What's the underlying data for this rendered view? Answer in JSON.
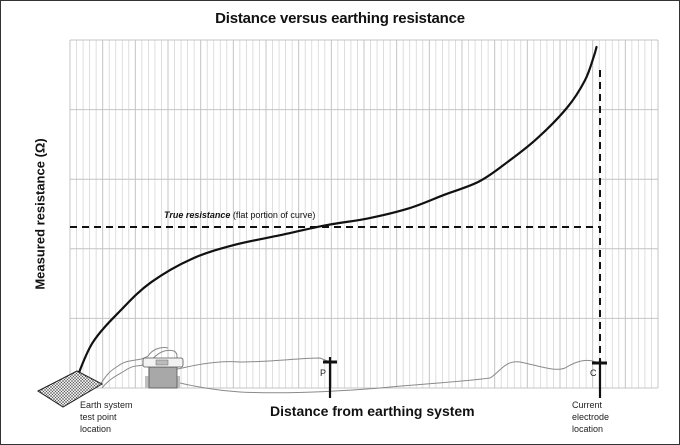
{
  "title": "Distance versus earthing resistance",
  "y_axis_label": "Measured resistance (Ω)",
  "x_axis_label": "Distance from earthing system",
  "annotation": {
    "bold_italic": "True resistance",
    "rest": " (flat portion of curve)"
  },
  "labels": {
    "earth_system": "Earth system\ntest point\nlocation",
    "current_electrode": "Current\nelectrode\nlocation",
    "p_probe": "P",
    "c_probe": "C"
  },
  "colors": {
    "curve": "#111111",
    "grid_minor": "#d6d6d6",
    "grid_major": "#c4c4c4",
    "lead_wire": "#8a8a8a",
    "meter_fill": "#b5b5b5",
    "mesh": "#555555"
  },
  "chart_data": {
    "type": "line",
    "title": "Distance versus earthing resistance",
    "xlabel": "Distance from earthing system",
    "ylabel": "Measured resistance (Ω)",
    "grid": true,
    "axis_ticks_labeled": false,
    "x_range_relative": [
      0,
      1
    ],
    "y_range_relative": [
      0,
      1
    ],
    "series": [
      {
        "name": "Measured resistance curve",
        "points_relative": [
          [
            0.0,
            0.0
          ],
          [
            0.03,
            0.12
          ],
          [
            0.08,
            0.22
          ],
          [
            0.13,
            0.3
          ],
          [
            0.2,
            0.37
          ],
          [
            0.27,
            0.41
          ],
          [
            0.35,
            0.44
          ],
          [
            0.43,
            0.47
          ],
          [
            0.5,
            0.49
          ],
          [
            0.57,
            0.52
          ],
          [
            0.63,
            0.56
          ],
          [
            0.69,
            0.6
          ],
          [
            0.74,
            0.66
          ],
          [
            0.79,
            0.73
          ],
          [
            0.84,
            0.82
          ],
          [
            0.87,
            0.9
          ],
          [
            0.885,
            0.97
          ],
          [
            0.89,
            1.0
          ]
        ]
      }
    ],
    "reference_lines": [
      {
        "type": "horizontal",
        "label": "True resistance (flat portion of curve)",
        "y_relative": 0.465,
        "style": "dashed"
      },
      {
        "type": "vertical",
        "label": "Current electrode location",
        "x_relative": 0.905,
        "style": "dashed"
      }
    ],
    "markers": [
      {
        "label": "P",
        "x_relative": 0.45,
        "description": "Potential probe"
      },
      {
        "label": "C",
        "x_relative": 0.905,
        "description": "Current electrode"
      },
      {
        "label": "Earth system test point location",
        "x_relative": 0.0
      }
    ]
  }
}
